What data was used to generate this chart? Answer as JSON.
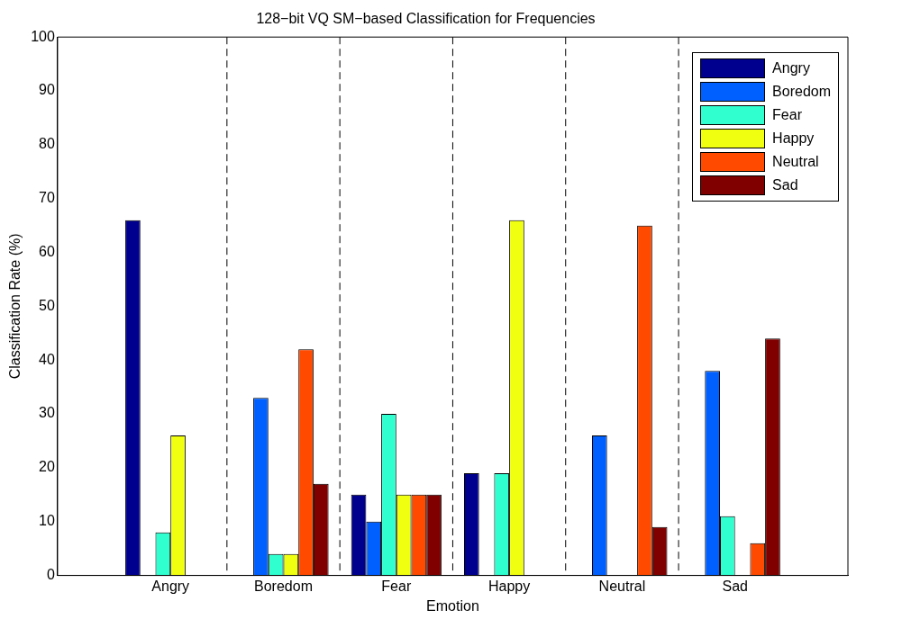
{
  "chart_data": {
    "type": "bar",
    "title": "128−bit VQ SM−based Classification for Frequencies",
    "xlabel": "Emotion",
    "ylabel": "Classification Rate (%)",
    "categories": [
      "Angry",
      "Boredom",
      "Fear",
      "Happy",
      "Neutral",
      "Sad"
    ],
    "series": [
      {
        "name": "Angry",
        "color": "#00008f",
        "values": [
          66,
          0,
          15,
          19,
          0,
          0
        ]
      },
      {
        "name": "Boredom",
        "color": "#0060ff",
        "values": [
          0,
          33,
          10,
          0,
          26,
          38
        ]
      },
      {
        "name": "Fear",
        "color": "#30ffd0",
        "values": [
          8,
          4,
          30,
          19,
          0,
          11
        ]
      },
      {
        "name": "Happy",
        "color": "#f0ff10",
        "values": [
          26,
          4,
          15,
          66,
          0,
          0
        ]
      },
      {
        "name": "Neutral",
        "color": "#ff4a00",
        "values": [
          0,
          42,
          15,
          0,
          65,
          6
        ]
      },
      {
        "name": "Sad",
        "color": "#800000",
        "values": [
          0,
          17,
          15,
          0,
          9,
          44
        ]
      }
    ],
    "ylim": [
      0,
      100
    ],
    "yticks": [
      0,
      10,
      20,
      30,
      40,
      50,
      60,
      70,
      80,
      90,
      100
    ],
    "grid": false,
    "legend": "top right"
  }
}
